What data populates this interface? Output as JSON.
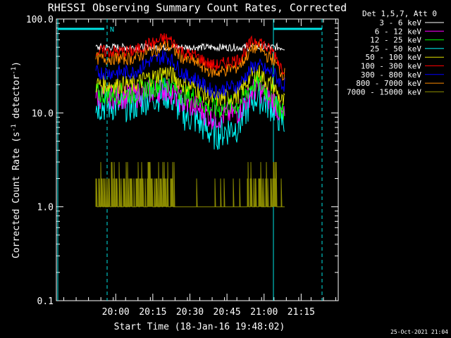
{
  "chart_data": {
    "type": "line",
    "title": "RHESSI Observing Summary Count Rates, Corrected",
    "xlabel": "Start Time (18-Jan-16 19:48:02)",
    "ylabel_main": "Corrected Count Rate (s",
    "ylabel_sup1": "-1",
    "ylabel_mid": " detector",
    "ylabel_sup2": "-1",
    "ylabel_end": ")",
    "yscale": "log",
    "ylim": [
      0.1,
      100
    ],
    "xlim_minutes": [
      19.6,
      21.5
    ],
    "x_ticks": [
      "20:00",
      "20:15",
      "20:30",
      "20:45",
      "21:00",
      "21:15"
    ],
    "y_ticks": [
      "100.0",
      "10.0",
      "1.0",
      "0.1"
    ],
    "legend_title": "Det 1,5,7, Att 0",
    "legend_placement": "top-right-outside",
    "series": [
      {
        "name": "3 - 6 keV",
        "color": "#ffffff",
        "values": [
          50,
          50,
          50,
          50,
          50,
          50,
          50,
          50,
          50
        ]
      },
      {
        "name": "6 - 12 keV",
        "color": "#ff00ff",
        "values": [
          15,
          17,
          18,
          12,
          9,
          10,
          18,
          14,
          9
        ]
      },
      {
        "name": "12 - 25 keV",
        "color": "#00ff00",
        "values": [
          16,
          19,
          21,
          15,
          11,
          12,
          21,
          16,
          10
        ]
      },
      {
        "name": "25 - 50 keV",
        "color": "#00ffff",
        "values": [
          12,
          15,
          16,
          9,
          6,
          7,
          15,
          12,
          8
        ]
      },
      {
        "name": "50 - 100 keV",
        "color": "#e0e000",
        "values": [
          20,
          24,
          27,
          19,
          14,
          15,
          27,
          20,
          13
        ]
      },
      {
        "name": "100 - 300 keV",
        "color": "#ff0000",
        "values": [
          45,
          55,
          62,
          42,
          32,
          36,
          60,
          46,
          30
        ]
      },
      {
        "name": "300 - 800 keV",
        "color": "#0000ff",
        "values": [
          27,
          36,
          40,
          24,
          17,
          19,
          32,
          27,
          20
        ]
      },
      {
        "name": "800 - 7000 keV",
        "color": "#ff8c00",
        "values": [
          38,
          46,
          52,
          36,
          27,
          30,
          50,
          38,
          26
        ]
      },
      {
        "name": "7000 - 15000 keV",
        "color": "#8b8b00",
        "values": [
          2,
          2,
          2,
          1,
          1,
          1,
          2,
          2,
          1
        ]
      }
    ],
    "x_minutes": [
      20.1,
      20.25,
      20.33,
      20.5,
      20.67,
      20.8,
      20.95,
      21.05,
      21.13
    ],
    "annotation_marker": "N",
    "footer_date": "25-Oct-2021 21:04",
    "overlay_color": "#00e5e5"
  }
}
